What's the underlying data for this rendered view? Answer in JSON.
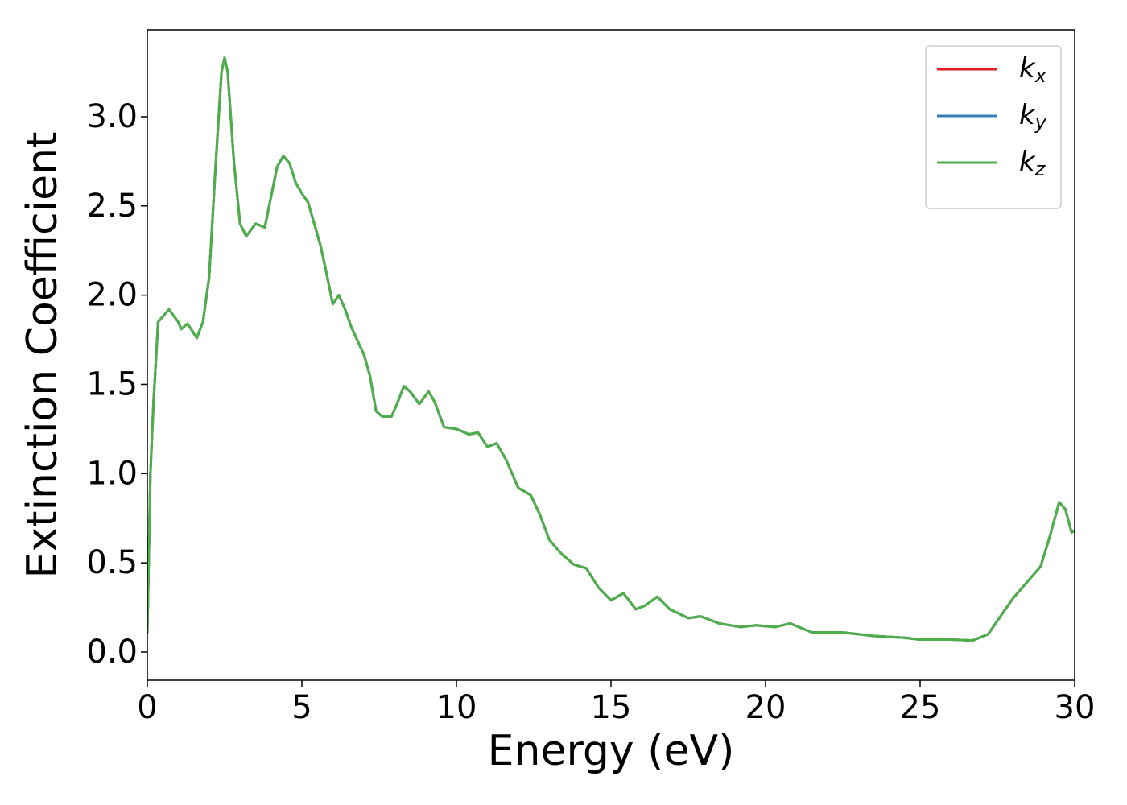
{
  "chart_data": {
    "type": "line",
    "xlabel": "Energy (eV)",
    "ylabel": "Extinction Coefficient",
    "x": [
      0,
      0.1,
      0.2,
      0.35,
      0.7,
      1.0,
      1.1,
      1.3,
      1.6,
      1.8,
      2.0,
      2.2,
      2.4,
      2.5,
      2.6,
      2.8,
      3.0,
      3.2,
      3.5,
      3.8,
      4.0,
      4.2,
      4.4,
      4.6,
      4.8,
      5.0,
      5.2,
      5.4,
      5.6,
      5.8,
      6.0,
      6.2,
      6.4,
      6.6,
      7.0,
      7.2,
      7.4,
      7.6,
      7.9,
      8.1,
      8.3,
      8.5,
      8.8,
      9.1,
      9.3,
      9.6,
      10.0,
      10.4,
      10.7,
      11.0,
      11.3,
      11.6,
      12.0,
      12.4,
      12.7,
      13.0,
      13.4,
      13.8,
      14.2,
      14.6,
      15.0,
      15.4,
      15.8,
      16.1,
      16.5,
      16.9,
      17.5,
      17.9,
      18.5,
      19.2,
      19.7,
      20.3,
      20.8,
      21.5,
      22.5,
      23.5,
      24.5,
      25.0,
      26.0,
      26.7,
      27.2,
      27.6,
      28.0,
      28.5,
      28.9,
      29.2,
      29.5,
      29.7,
      29.9,
      30.0
    ],
    "series": [
      {
        "name": "kx",
        "color": "#e41a1c",
        "values": [
          0.1,
          1.0,
          1.4,
          1.85,
          1.92,
          1.85,
          1.81,
          1.84,
          1.76,
          1.85,
          2.1,
          2.7,
          3.25,
          3.33,
          3.25,
          2.75,
          2.4,
          2.33,
          2.4,
          2.38,
          2.55,
          2.72,
          2.78,
          2.74,
          2.63,
          2.57,
          2.52,
          2.4,
          2.28,
          2.12,
          1.95,
          2.0,
          1.92,
          1.82,
          1.67,
          1.55,
          1.35,
          1.32,
          1.32,
          1.4,
          1.49,
          1.46,
          1.39,
          1.46,
          1.4,
          1.26,
          1.25,
          1.22,
          1.23,
          1.15,
          1.17,
          1.08,
          0.92,
          0.88,
          0.77,
          0.63,
          0.55,
          0.49,
          0.47,
          0.36,
          0.29,
          0.33,
          0.24,
          0.26,
          0.31,
          0.24,
          0.19,
          0.2,
          0.16,
          0.14,
          0.15,
          0.14,
          0.16,
          0.11,
          0.11,
          0.09,
          0.08,
          0.07,
          0.07,
          0.065,
          0.1,
          0.2,
          0.3,
          0.4,
          0.48,
          0.65,
          0.84,
          0.8,
          0.67,
          0.68
        ]
      },
      {
        "name": "ky",
        "color": "#377eb8",
        "values": [
          0.1,
          1.0,
          1.4,
          1.85,
          1.92,
          1.85,
          1.81,
          1.84,
          1.76,
          1.85,
          2.1,
          2.7,
          3.25,
          3.33,
          3.25,
          2.75,
          2.4,
          2.33,
          2.4,
          2.38,
          2.55,
          2.72,
          2.78,
          2.74,
          2.63,
          2.57,
          2.52,
          2.4,
          2.28,
          2.12,
          1.95,
          2.0,
          1.92,
          1.82,
          1.67,
          1.55,
          1.35,
          1.32,
          1.32,
          1.4,
          1.49,
          1.46,
          1.39,
          1.46,
          1.4,
          1.26,
          1.25,
          1.22,
          1.23,
          1.15,
          1.17,
          1.08,
          0.92,
          0.88,
          0.77,
          0.63,
          0.55,
          0.49,
          0.47,
          0.36,
          0.29,
          0.33,
          0.24,
          0.26,
          0.31,
          0.24,
          0.19,
          0.2,
          0.16,
          0.14,
          0.15,
          0.14,
          0.16,
          0.11,
          0.11,
          0.09,
          0.08,
          0.07,
          0.07,
          0.065,
          0.1,
          0.2,
          0.3,
          0.4,
          0.48,
          0.65,
          0.84,
          0.8,
          0.67,
          0.68
        ]
      },
      {
        "name": "kz",
        "color": "#4daf4a",
        "values": [
          0.1,
          1.0,
          1.4,
          1.85,
          1.92,
          1.85,
          1.81,
          1.84,
          1.76,
          1.85,
          2.1,
          2.7,
          3.25,
          3.33,
          3.25,
          2.75,
          2.4,
          2.33,
          2.4,
          2.38,
          2.55,
          2.72,
          2.78,
          2.74,
          2.63,
          2.57,
          2.52,
          2.4,
          2.28,
          2.12,
          1.95,
          2.0,
          1.92,
          1.82,
          1.67,
          1.55,
          1.35,
          1.32,
          1.32,
          1.4,
          1.49,
          1.46,
          1.39,
          1.46,
          1.4,
          1.26,
          1.25,
          1.22,
          1.23,
          1.15,
          1.17,
          1.08,
          0.92,
          0.88,
          0.77,
          0.63,
          0.55,
          0.49,
          0.47,
          0.36,
          0.29,
          0.33,
          0.24,
          0.26,
          0.31,
          0.24,
          0.19,
          0.2,
          0.16,
          0.14,
          0.15,
          0.14,
          0.16,
          0.11,
          0.11,
          0.09,
          0.08,
          0.07,
          0.07,
          0.065,
          0.1,
          0.2,
          0.3,
          0.4,
          0.48,
          0.65,
          0.84,
          0.8,
          0.67,
          0.68
        ]
      }
    ],
    "xlim": [
      0,
      30
    ],
    "xticks": [
      0,
      5,
      10,
      15,
      20,
      25,
      30
    ],
    "ylim": [
      -0.158,
      3.487
    ],
    "yticks": [
      {
        "value": 0,
        "label": "0.0"
      },
      0.5,
      {
        "value": 1,
        "label": "1.0"
      },
      1.5,
      {
        "value": 2,
        "label": "2.0"
      },
      2.5,
      {
        "value": 3,
        "label": "3.0"
      }
    ],
    "legend": "upper right",
    "grid": false
  }
}
